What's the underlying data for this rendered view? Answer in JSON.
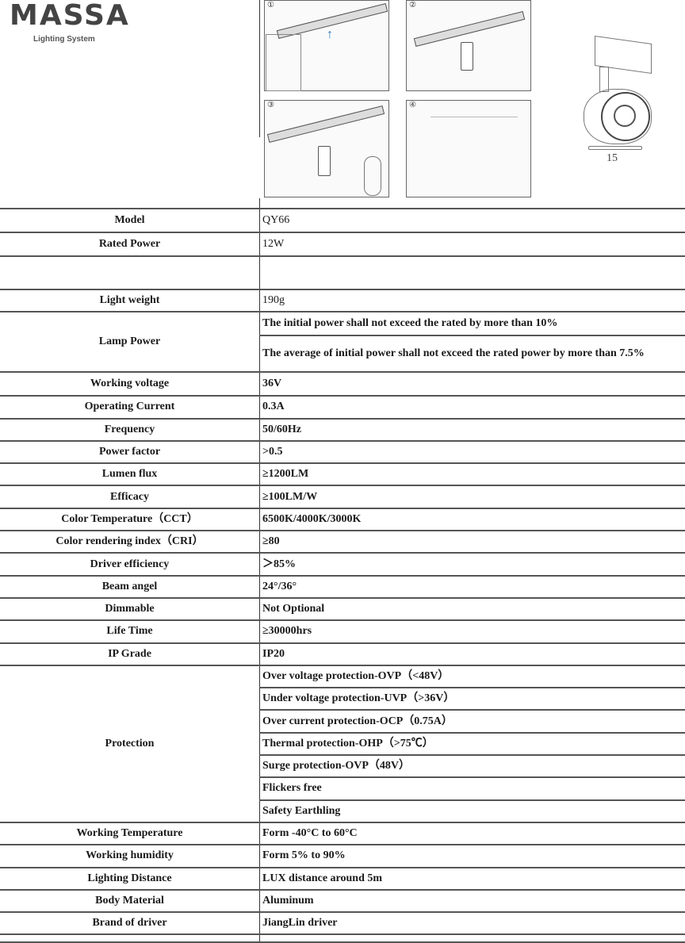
{
  "header": {
    "brand": "MASSA",
    "tagline": "Lighting System"
  },
  "figures": {
    "steps": [
      "①",
      "②",
      "③",
      "④"
    ],
    "product_label": "15"
  },
  "specs": [
    {
      "key": "Model",
      "values": [
        "QY66"
      ]
    },
    {
      "key": "Rated Power",
      "values": [
        "12W"
      ]
    },
    {
      "key": "",
      "values": [
        ""
      ]
    },
    {
      "key": "Light weight",
      "values": [
        "190g"
      ]
    },
    {
      "key": "Lamp Power",
      "values": [
        "The initial power shall not exceed the rated by more than 10%",
        "The average of initial power shall not exceed the rated power by more than 7.5%"
      ]
    },
    {
      "key": "Working voltage",
      "values": [
        "36V"
      ]
    },
    {
      "key": "Operating Current",
      "values": [
        "0.3A"
      ]
    },
    {
      "key": "Frequency",
      "values": [
        "50/60Hz"
      ]
    },
    {
      "key": "Power factor",
      "values": [
        ">0.5"
      ]
    },
    {
      "key": "Lumen flux",
      "values": [
        "≥1200LM"
      ]
    },
    {
      "key": "Efficacy",
      "values": [
        "≥100LM/W"
      ]
    },
    {
      "key": "Color Temperature（CCT）",
      "values": [
        "6500K/4000K/3000K"
      ]
    },
    {
      "key": "Color rendering index（CRI）",
      "values": [
        "≥80"
      ]
    },
    {
      "key": "Driver efficiency",
      "values": [
        "＞85%"
      ]
    },
    {
      "key": "Beam angel",
      "values": [
        "24°/36°"
      ]
    },
    {
      "key": "Dimmable",
      "values": [
        "Not Optional"
      ]
    },
    {
      "key": "Life Time",
      "values": [
        "≥30000hrs"
      ]
    },
    {
      "key": "IP Grade",
      "values": [
        "IP20"
      ]
    },
    {
      "key": "Protection",
      "values": [
        "Over voltage protection-OVP（<48V）",
        "Under voltage  protection-UVP（>36V）",
        "Over current protection-OCP（0.75A）",
        "Thermal protection-OHP（>75℃）",
        "Surge protection-OVP（48V）",
        "Flickers free",
        "Safety Earthling"
      ]
    },
    {
      "key": "Working Temperature",
      "values": [
        "Form -40°C to 60°C"
      ]
    },
    {
      "key": "Working humidity",
      "values": [
        "Form 5% to 90%"
      ]
    },
    {
      "key": "Lighting Distance",
      "values": [
        "LUX distance around  5m"
      ]
    },
    {
      "key": "Body Material",
      "values": [
        "Aluminum"
      ]
    },
    {
      "key": "Brand of driver",
      "values": [
        "JiangLin driver"
      ]
    }
  ]
}
